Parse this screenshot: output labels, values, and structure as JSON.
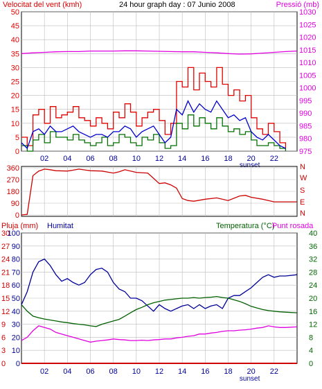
{
  "colors": {
    "wind_speed": "#e00000",
    "wind_avg": "#0000cc",
    "wind_green": "#007000",
    "pressure": "#e000e0",
    "direction": "#cc0000",
    "humidity": "#000099",
    "temperature": "#006000",
    "dew_point": "#e000e0",
    "rain": "#cc0000",
    "rain_axis": "#cc0000",
    "temp_axis": "#006600",
    "background": "#ffffff",
    "frame": "#000000",
    "grid": "#bbbbbb"
  },
  "chart_data": [
    {
      "type": "line",
      "title": "24 hour graph day : 07 Junio 2008",
      "left_axis_title": "Velocitat del vent (kmh)",
      "right_axis_title": "Pressió (mb)",
      "x_tick_labels": [
        "02",
        "04",
        "06",
        "08",
        "10",
        "12",
        "14",
        "16",
        "18",
        "20",
        "22"
      ],
      "x_ticks_hours": [
        2,
        4,
        6,
        8,
        10,
        12,
        14,
        16,
        18,
        20,
        22
      ],
      "x_range_hours": [
        0,
        24
      ],
      "x_extra_label": "sunset",
      "x_extra_label_hour": 20,
      "ylim_left": [
        0,
        50
      ],
      "yticks_left": [
        0,
        5,
        10,
        15,
        20,
        25,
        30,
        35,
        40,
        45,
        50
      ],
      "ylim_right": [
        975,
        1030
      ],
      "yticks_right": [
        975,
        980,
        985,
        990,
        995,
        1000,
        1005,
        1010,
        1015,
        1020,
        1025,
        1030
      ],
      "grid": true,
      "series": [
        {
          "axis": "left",
          "color_key": "wind_speed",
          "style": "step",
          "x": [
            0,
            0.5,
            1,
            1.5,
            2,
            2.5,
            3,
            3.5,
            4,
            4.5,
            5,
            5.5,
            6,
            6.5,
            7,
            7.5,
            8,
            8.5,
            9,
            9.5,
            10,
            10.5,
            11,
            11.5,
            12,
            12.5,
            13,
            13.5,
            14,
            14.5,
            15,
            15.5,
            16,
            16.5,
            17,
            17.5,
            18,
            18.5,
            19,
            19.5,
            20,
            20.5,
            21,
            21.5,
            22,
            22.5,
            23
          ],
          "values": [
            5,
            2,
            13,
            15,
            10,
            16,
            12,
            13,
            14,
            16,
            12,
            11,
            9,
            12,
            10,
            8,
            14,
            12,
            17,
            14,
            9,
            12,
            14,
            15,
            11,
            6,
            10,
            25,
            23,
            30,
            22,
            28,
            25,
            23,
            30,
            24,
            20,
            22,
            18,
            20,
            12,
            8,
            6,
            10,
            7,
            3,
            1
          ]
        },
        {
          "axis": "left",
          "color_key": "wind_green",
          "style": "step",
          "x": [
            0,
            0.5,
            1,
            1.5,
            2,
            2.5,
            3,
            3.5,
            4,
            4.5,
            5,
            5.5,
            6,
            6.5,
            7,
            7.5,
            8,
            8.5,
            9,
            9.5,
            10,
            10.5,
            11,
            11.5,
            12,
            12.5,
            13,
            13.5,
            14,
            14.5,
            15,
            15.5,
            16,
            16.5,
            17,
            17.5,
            18,
            18.5,
            19,
            19.5,
            20,
            20.5,
            21,
            21.5,
            22,
            22.5,
            23
          ],
          "values": [
            2,
            0,
            4,
            6,
            3,
            7,
            5,
            5,
            4,
            6,
            4,
            3,
            2,
            3,
            5,
            2,
            3,
            6,
            5,
            3,
            2,
            5,
            4,
            6,
            3,
            1,
            2,
            10,
            8,
            13,
            9,
            12,
            10,
            8,
            12,
            9,
            7,
            8,
            6,
            7,
            4,
            2,
            2,
            3,
            2,
            1,
            0
          ]
        },
        {
          "axis": "left",
          "color_key": "wind_avg",
          "style": "line",
          "x": [
            0,
            0.5,
            1,
            1.5,
            2,
            2.5,
            3,
            3.5,
            4,
            4.5,
            5,
            5.5,
            6,
            6.5,
            7,
            7.5,
            8,
            8.5,
            9,
            9.5,
            10,
            10.5,
            11,
            11.5,
            12,
            12.5,
            13,
            13.5,
            14,
            14.5,
            15,
            15.5,
            16,
            16.5,
            17,
            17.5,
            18,
            18.5,
            19,
            19.5,
            20,
            20.5,
            21,
            21.5,
            22,
            22.5,
            23
          ],
          "values": [
            3,
            1,
            7,
            8,
            6,
            9,
            7,
            7,
            8,
            9,
            7,
            6,
            5,
            6,
            6,
            5,
            7,
            7,
            9,
            8,
            5,
            7,
            8,
            9,
            6,
            3,
            5,
            15,
            13,
            18,
            14,
            17,
            15,
            14,
            18,
            15,
            12,
            13,
            11,
            12,
            7,
            5,
            4,
            6,
            4,
            2,
            1
          ]
        },
        {
          "axis": "right",
          "color_key": "pressure",
          "style": "line",
          "x": [
            0,
            1,
            2,
            3,
            4,
            5,
            6,
            7,
            8,
            9,
            10,
            11,
            12,
            13,
            14,
            15,
            16,
            17,
            18,
            19,
            20,
            21,
            22,
            23,
            24
          ],
          "values": [
            1013.5,
            1013.8,
            1014,
            1014.2,
            1014.3,
            1014.3,
            1014.5,
            1014.5,
            1014.5,
            1014.6,
            1014.6,
            1014.5,
            1014.4,
            1014.3,
            1014.2,
            1014.2,
            1014,
            1013.8,
            1013.5,
            1013.3,
            1013.4,
            1013.7,
            1014,
            1014.3,
            1014.5
          ]
        }
      ]
    },
    {
      "type": "line",
      "right_axis_labels": [
        "N",
        "W",
        "S",
        "E",
        "N"
      ],
      "x_range_hours": [
        0,
        24
      ],
      "ylim": [
        0,
        360
      ],
      "yticks": [
        0,
        90,
        180,
        270,
        360
      ],
      "grid": true,
      "series": [
        {
          "color_key": "direction",
          "x": [
            0,
            0.5,
            1,
            1.5,
            2,
            2.5,
            3,
            4,
            4.5,
            5,
            6,
            7,
            8,
            8.5,
            9,
            10,
            11,
            12,
            12.5,
            13,
            13.5,
            14,
            14.5,
            15,
            16,
            17,
            18,
            19,
            19.5,
            20,
            21,
            22,
            23,
            24
          ],
          "values": [
            0,
            5,
            300,
            335,
            350,
            345,
            338,
            335,
            342,
            350,
            338,
            335,
            320,
            330,
            345,
            325,
            320,
            240,
            245,
            230,
            205,
            125,
            110,
            105,
            120,
            130,
            110,
            145,
            150,
            135,
            120,
            100,
            100,
            100
          ]
        }
      ]
    },
    {
      "type": "line",
      "left_axis_title_rain": "Pluja (mm)",
      "left_axis_title_hum": "Humitat",
      "right_axis_title_temp": "Temperatura (°C)",
      "right_axis_title_dew": "Punt rosada",
      "x_tick_labels": [
        "02",
        "04",
        "06",
        "08",
        "10",
        "12",
        "14",
        "16",
        "18",
        "20",
        "22"
      ],
      "x_ticks_hours": [
        2,
        4,
        6,
        8,
        10,
        12,
        14,
        16,
        18,
        20,
        22
      ],
      "x_range_hours": [
        0,
        24
      ],
      "x_extra_label": "sunset",
      "x_extra_label_hour": 20,
      "ylim_rain": [
        0,
        30
      ],
      "yticks_rain": [
        0,
        3,
        6,
        9,
        12,
        15,
        18,
        21,
        24,
        27,
        30
      ],
      "ylim_hum": [
        0,
        100
      ],
      "yticks_hum": [
        0,
        10,
        20,
        30,
        40,
        50,
        60,
        70,
        80,
        90,
        100
      ],
      "ylim_temp": [
        0,
        40
      ],
      "yticks_temp": [
        0,
        4,
        8,
        12,
        16,
        20,
        24,
        28,
        32,
        36,
        40
      ],
      "grid": true,
      "series": [
        {
          "axis": "hum",
          "color_key": "humidity",
          "x": [
            0,
            0.5,
            1,
            1.5,
            2,
            2.5,
            3,
            3.5,
            4,
            4.5,
            5,
            5.5,
            6,
            6.5,
            7,
            7.5,
            8,
            8.5,
            9,
            9.5,
            10,
            10.5,
            11,
            11.5,
            12,
            12.5,
            13,
            13.5,
            14,
            14.5,
            15,
            15.5,
            16,
            16.5,
            17,
            17.5,
            18,
            18.5,
            19,
            19.5,
            20,
            20.5,
            21,
            21.5,
            22,
            22.5,
            23,
            24
          ],
          "values": [
            45,
            55,
            70,
            78,
            80,
            75,
            68,
            63,
            65,
            62,
            60,
            62,
            68,
            72,
            73,
            70,
            62,
            57,
            55,
            50,
            50,
            48,
            44,
            40,
            45,
            42,
            40,
            42,
            44,
            45,
            42,
            45,
            42,
            44,
            45,
            42,
            50,
            52,
            52,
            55,
            58,
            62,
            66,
            68,
            66,
            67,
            67,
            68
          ]
        },
        {
          "axis": "temp",
          "color_key": "temperature",
          "x": [
            0,
            0.5,
            1,
            1.5,
            2,
            2.5,
            3,
            3.5,
            4,
            4.5,
            5,
            5.5,
            6,
            6.5,
            7,
            7.5,
            8,
            8.5,
            9,
            9.5,
            10,
            10.5,
            11,
            11.5,
            12,
            12.5,
            13,
            13.5,
            14,
            14.5,
            15,
            15.5,
            16,
            16.5,
            17,
            17.5,
            18,
            18.5,
            19,
            19.5,
            20,
            20.5,
            21,
            21.5,
            22,
            22.5,
            23,
            24
          ],
          "values": [
            18,
            16,
            14.5,
            14,
            13.6,
            13.3,
            13,
            12.7,
            12.5,
            12.2,
            12,
            11.8,
            11.5,
            11.3,
            12,
            12.5,
            13,
            13.5,
            14.5,
            15.5,
            16.5,
            17.2,
            18,
            18.6,
            19,
            19.4,
            19.6,
            19.8,
            20,
            20,
            20.2,
            20,
            20.2,
            20.3,
            20.5,
            20.2,
            20,
            19.5,
            19,
            18.3,
            17.5,
            17,
            16.5,
            16.2,
            16,
            15.8,
            15.7,
            15.5
          ]
        },
        {
          "axis": "temp",
          "color_key": "dew_point",
          "x": [
            0,
            0.5,
            1,
            1.5,
            2,
            2.5,
            3,
            3.5,
            4,
            4.5,
            5,
            5.5,
            6,
            6.5,
            7,
            7.5,
            8,
            8.5,
            9,
            9.5,
            10,
            10.5,
            11,
            11.5,
            12,
            12.5,
            13,
            13.5,
            14,
            14.5,
            15,
            15.5,
            16,
            16.5,
            17,
            17.5,
            18,
            18.5,
            19,
            19.5,
            20,
            20.5,
            21,
            21.5,
            22,
            22.5,
            23,
            24
          ],
          "values": [
            7,
            8,
            10,
            11.5,
            11,
            10.5,
            9.5,
            9,
            8.5,
            8,
            7.5,
            7,
            6.5,
            6.8,
            7,
            7.2,
            7.5,
            7.3,
            7.2,
            7,
            7,
            7.1,
            7,
            7.2,
            7.3,
            7.5,
            7.5,
            7.8,
            8,
            8.3,
            8.5,
            9,
            9,
            9.3,
            9.5,
            9.8,
            10,
            10,
            10.2,
            10.3,
            10.5,
            10.8,
            11,
            11.5,
            11.2,
            11,
            11,
            11.2
          ]
        },
        {
          "axis": "rain",
          "color_key": "rain",
          "x": [
            0,
            24
          ],
          "values": [
            0,
            0
          ]
        }
      ]
    }
  ]
}
